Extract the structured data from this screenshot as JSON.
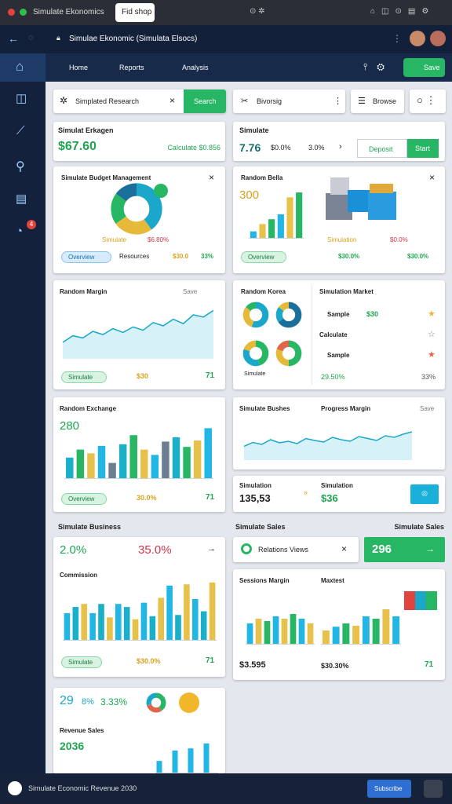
{
  "browser": {
    "tabs": [
      "Simulate Ekonomics",
      "Fid shop"
    ]
  },
  "address": "Simulae Ekonomic (Simulata Elsocs)",
  "nav": [
    "Home",
    "Reports",
    "Analysis"
  ],
  "nav_button": "Save",
  "sidebar": {
    "badge": "4"
  },
  "search": {
    "placeholder": "Simplated Research",
    "button": "Search"
  },
  "filter": "Bivorsig",
  "view": "Browse",
  "summary_left": {
    "title": "Simulat Erkagen",
    "value": "$67.60",
    "change": "Calculate $0.856"
  },
  "summary_right": {
    "title": "Simulate",
    "values": [
      "7.76",
      "$0.0%",
      "3.0%"
    ],
    "buttons": [
      "Deposit",
      "Start"
    ]
  },
  "budget": {
    "title": "Simulate Budget Management",
    "legend": [
      "Simulate",
      "$6.80%"
    ],
    "footer": [
      "Overview",
      "Resources",
      "$30.0",
      "33%"
    ],
    "chart": {
      "type": "donut",
      "values": [
        40,
        25,
        20,
        15
      ],
      "colors": [
        "#1aa7c9",
        "#e7b93a",
        "#27b764",
        "#1b6f9b"
      ]
    }
  },
  "bella": {
    "title": "Random Bella",
    "value": "300",
    "legend": [
      "Simulation",
      "$0.0%"
    ],
    "footer": [
      "Overview",
      "$30.0%",
      "$30.0%"
    ],
    "chart": {
      "type": "bar",
      "ylim": [
        0,
        100
      ],
      "values": [
        15,
        30,
        40,
        50,
        85,
        95
      ],
      "colors": [
        "#22b6e4",
        "#e7c14a",
        "#27b764"
      ]
    }
  },
  "margin": {
    "title": "Random Margin",
    "action": "Save",
    "footer": [
      "Simulate",
      "$30",
      "71"
    ],
    "chart": {
      "type": "line",
      "ylim": [
        0,
        100
      ],
      "color": "#1aa7c9",
      "values": [
        30,
        42,
        38,
        50,
        44,
        55,
        48,
        58,
        52,
        66,
        60,
        72,
        64,
        80,
        76,
        88
      ]
    }
  },
  "korea": {
    "title": "Random Korea",
    "footer": "Simulate",
    "charts": [
      {
        "type": "donut",
        "values": [
          55,
          30,
          15
        ],
        "colors": [
          "#1aa7c9",
          "#e7b93a",
          "#27b764"
        ]
      },
      {
        "type": "donut",
        "values": [
          65,
          20,
          15
        ],
        "colors": [
          "#1b6f9b",
          "#1aa7c9",
          "#e7b93a"
        ]
      },
      {
        "type": "donut",
        "values": [
          45,
          35,
          20
        ],
        "colors": [
          "#27b764",
          "#1aa7c9",
          "#e7b93a"
        ]
      },
      {
        "type": "donut",
        "values": [
          50,
          30,
          20
        ],
        "colors": [
          "#27b764",
          "#e7b93a",
          "#e0664a"
        ]
      }
    ]
  },
  "market": {
    "title": "Simulation Market",
    "rows": [
      [
        "Sample",
        "$30"
      ],
      [
        "Calculate"
      ],
      [
        "Sample"
      ]
    ],
    "footer": [
      "29.50%",
      "33%"
    ]
  },
  "exchange": {
    "title": "Random Exchange",
    "value": "280",
    "footer": [
      "Overview",
      "30.0%",
      "71"
    ],
    "chart": {
      "type": "bar",
      "ylim": [
        0,
        100
      ],
      "values": [
        40,
        55,
        48,
        62,
        30,
        65,
        82,
        55,
        45,
        70,
        78,
        60,
        72,
        95
      ],
      "colors": [
        "#1ab0c9",
        "#27b764",
        "#e7c14a",
        "#22b6e4",
        "#6b7f90"
      ]
    }
  },
  "progress": {
    "title": "Simulate Bushes",
    "subtitle": "Progress Margin",
    "action": "Save",
    "chart": {
      "type": "line",
      "ylim": [
        0,
        100
      ],
      "color": "#1aa7c9",
      "values": [
        35,
        45,
        40,
        52,
        44,
        48,
        42,
        55,
        50,
        46,
        58,
        52,
        48,
        60,
        55,
        50,
        62,
        58,
        66,
        72
      ]
    }
  },
  "simulation": {
    "title": "Simulation",
    "value": "135,53",
    "title2": "Simulation",
    "value2": "$36"
  },
  "section": {
    "left": "Simulate Business",
    "right": "Simulate Sales"
  },
  "business": {
    "values": [
      "2.0%",
      "35.0%"
    ],
    "title": "Commission",
    "footer": [
      "Simulate",
      "$30.0%",
      "71"
    ],
    "chart": {
      "type": "bar",
      "ylim": [
        0,
        100
      ],
      "values": [
        45,
        55,
        60,
        45,
        60,
        38,
        60,
        55,
        35,
        62,
        40,
        70,
        90,
        42,
        92,
        68,
        48,
        95
      ],
      "colors": [
        "#22b6e4",
        "#1ab0c9",
        "#e7c14a"
      ]
    }
  },
  "relations": {
    "label": "Relations Views",
    "value": "296"
  },
  "sessions": {
    "title": "Sessions Margin",
    "subtitle": "Maxtest",
    "footer": [
      "$3.595",
      "$30.30%",
      "71"
    ],
    "charts": [
      {
        "type": "bar",
        "ylim": [
          0,
          100
        ],
        "values": [
          45,
          55,
          50,
          60,
          55,
          65,
          55,
          45
        ],
        "colors": [
          "#22b6e4",
          "#e7c14a",
          "#27b764"
        ]
      },
      {
        "type": "bar",
        "ylim": [
          0,
          100
        ],
        "values": [
          30,
          38,
          45,
          40,
          60,
          55,
          75,
          60
        ],
        "colors": [
          "#e7c14a",
          "#22b6e4",
          "#27b764"
        ]
      }
    ]
  },
  "revenue": {
    "values": [
      "29",
      "8%",
      "3.33%"
    ],
    "title": "Revenue Sales",
    "value": "2036",
    "donut": {
      "type": "donut",
      "values": [
        40,
        30,
        30
      ],
      "colors": [
        "#27b764",
        "#e0664a",
        "#1aa7c9"
      ]
    },
    "chart": {
      "type": "bar",
      "ylim": [
        0,
        100
      ],
      "values": [
        30,
        50,
        55,
        62,
        60,
        60,
        72,
        80
      ],
      "colors": [
        "#22b6e4",
        "#ffffff"
      ]
    }
  },
  "footer": {
    "text": "Simulate Economic Revenue 2030",
    "button": "Subscribe"
  }
}
